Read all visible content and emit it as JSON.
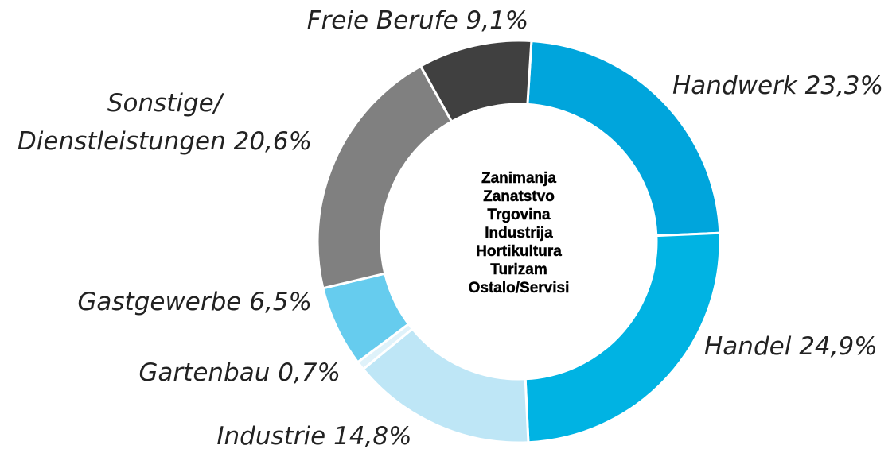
{
  "chart_data": {
    "type": "donut",
    "categories": [
      "Handwerk",
      "Handel",
      "Industrie",
      "Gartenbau",
      "Gastgewerbe",
      "Sonstige/ Dienstleistungen",
      "Freie Berufe"
    ],
    "values": [
      23.3,
      24.9,
      14.8,
      0.7,
      6.5,
      20.6,
      9.1
    ],
    "value_labels": [
      "23,3%",
      "24,9%",
      "14,8%",
      "0,7%",
      "6,5%",
      "20,6%",
      "9,1%"
    ],
    "colors": [
      "#00a5dc",
      "#00b3e3",
      "#bee6f6",
      "#dff2fa",
      "#66ccee",
      "#808080",
      "#404040"
    ],
    "center_text": [
      "Zanimanja",
      "Zanatstvo",
      "Trgovina",
      "Industrija",
      "Hortikultura",
      "Turizam",
      "Ostalo/Servisi"
    ]
  }
}
